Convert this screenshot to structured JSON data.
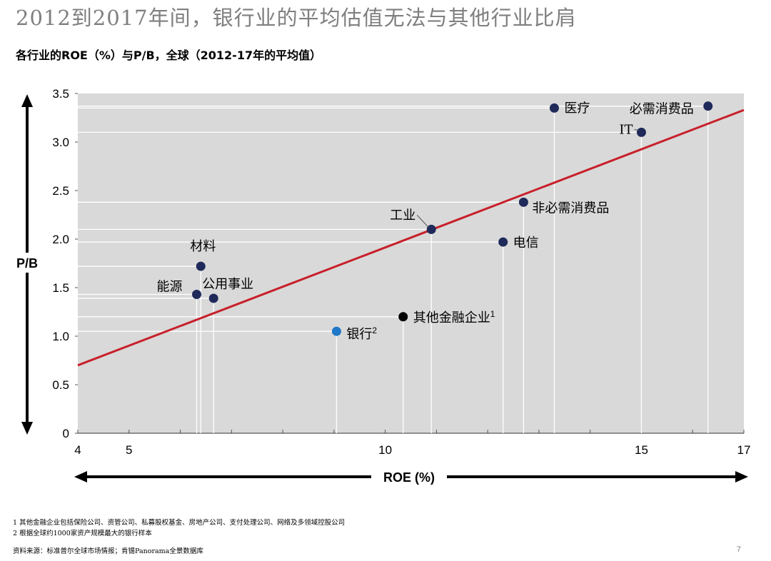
{
  "title": "2012到2017年间，银行业的平均估值无法与其他行业比肩",
  "subtitle": "各行业的ROE（%）与P/B，全球（2012-17年的平均值）",
  "chart_data": {
    "type": "scatter",
    "xlabel": "ROE (%)",
    "ylabel": "P/B",
    "xlim": [
      4,
      17
    ],
    "ylim": [
      0,
      3.5
    ],
    "xticks": [
      4,
      5,
      10,
      15,
      17
    ],
    "yticks": [
      "0",
      "0.5",
      "1.0",
      "1.5",
      "2.0",
      "2.5",
      "3.0",
      "3.5"
    ],
    "points": [
      {
        "label": "医疗",
        "sup": "",
        "x": 13.3,
        "y": 3.35,
        "color": "#1f2a5a"
      },
      {
        "label": "必需消费品",
        "sup": "",
        "x": 16.3,
        "y": 3.37,
        "color": "#1f2a5a"
      },
      {
        "label": "IT",
        "sup": "",
        "x": 15.0,
        "y": 3.1,
        "color": "#1f2a5a"
      },
      {
        "label": "非必需消费品",
        "sup": "",
        "x": 12.7,
        "y": 2.38,
        "color": "#1f2a5a"
      },
      {
        "label": "工业",
        "sup": "",
        "x": 10.9,
        "y": 2.1,
        "color": "#1f2a5a"
      },
      {
        "label": "电信",
        "sup": "",
        "x": 12.3,
        "y": 1.97,
        "color": "#1f2a5a"
      },
      {
        "label": "材料",
        "sup": "",
        "x": 6.4,
        "y": 1.72,
        "color": "#1f2a5a"
      },
      {
        "label": "能源",
        "sup": "",
        "x": 6.32,
        "y": 1.43,
        "color": "#1f2a5a"
      },
      {
        "label": "公用事业",
        "sup": "",
        "x": 6.65,
        "y": 1.39,
        "color": "#1f2a5a"
      },
      {
        "label": "其他金融企业",
        "sup": "1",
        "x": 10.35,
        "y": 1.2,
        "color": "#000000"
      },
      {
        "label": "银行",
        "sup": "2",
        "x": 9.05,
        "y": 1.05,
        "color": "#1f78c8"
      }
    ],
    "regression_line": {
      "x": [
        4,
        17
      ],
      "y": [
        0.7,
        3.33
      ],
      "color": "#c8202a"
    },
    "background": "#d9d9d9"
  },
  "footnotes": [
    "1 其他金融企业包括保险公司、资管公司、私募股权基金、房地产公司、支付处理公司、网络及多领域控股公司",
    "2 根据全球约1000家资产规模最大的银行样本"
  ],
  "source": "资料来源：标准普尔全球市场情报；肯锡Panorama全景数据库",
  "page_number": "7"
}
